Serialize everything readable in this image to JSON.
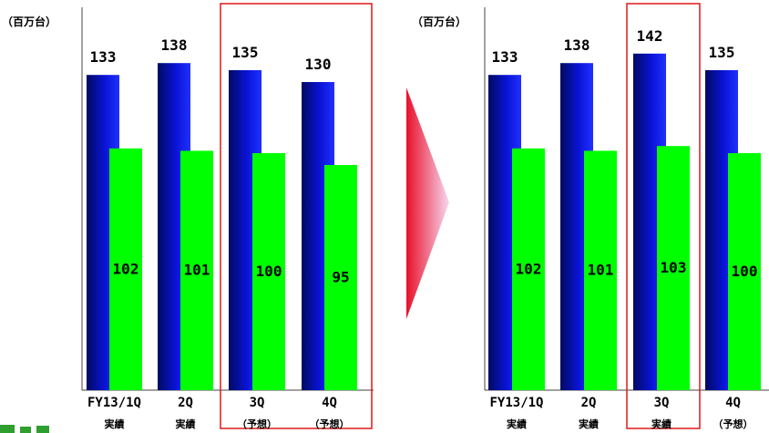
{
  "colors": {
    "series_a": "#0a13d6",
    "series_b": "#00ff00",
    "highlight_box": "#e01818",
    "arrow": "#e8102a"
  },
  "chart_data": [
    {
      "type": "bar",
      "unit_label": "（百万台）",
      "categories": [
        "FY13/1Q",
        "2Q",
        "3Q",
        "4Q"
      ],
      "category_sublabels": [
        "実績",
        "実績",
        "（予想）",
        "（予想）"
      ],
      "series": [
        {
          "values": [
            133,
            138,
            135,
            130
          ]
        },
        {
          "values": [
            102,
            101,
            100,
            95
          ]
        }
      ],
      "ylim": [
        0,
        155
      ],
      "highlight_categories": [
        "3Q",
        "4Q"
      ]
    },
    {
      "type": "bar",
      "unit_label": "（百万台）",
      "categories": [
        "FY13/1Q",
        "2Q",
        "3Q",
        "4Q"
      ],
      "category_sublabels": [
        "実績",
        "実績",
        "実績",
        "（予想）"
      ],
      "series": [
        {
          "values": [
            133,
            138,
            142,
            135
          ]
        },
        {
          "values": [
            102,
            101,
            103,
            100
          ]
        }
      ],
      "ylim": [
        0,
        155
      ],
      "highlight_categories": [
        "3Q"
      ]
    }
  ]
}
